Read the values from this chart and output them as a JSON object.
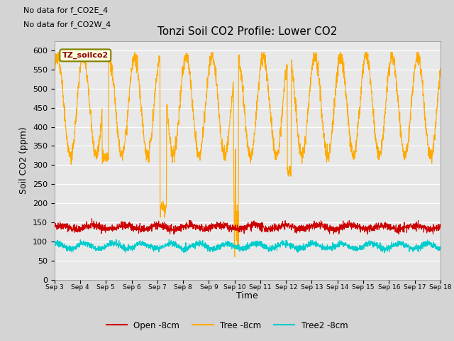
{
  "title": "Tonzi Soil CO2 Profile: Lower CO2",
  "ylabel": "Soil CO2 (ppm)",
  "xlabel": "Time",
  "no_data_text_1": "No data for f_CO2E_4",
  "no_data_text_2": "No data for f_CO2W_4",
  "legend_label": "TZ_soilco2",
  "ylim": [
    0,
    625
  ],
  "yticks": [
    0,
    50,
    100,
    150,
    200,
    250,
    300,
    350,
    400,
    450,
    500,
    550,
    600
  ],
  "xtick_labels": [
    "Sep 3",
    "Sep 4",
    "Sep 5",
    "Sep 6",
    "Sep 7",
    "Sep 8",
    "Sep 9",
    "Sep 10",
    "Sep 11",
    "Sep 12",
    "Sep 13",
    "Sep 14",
    "Sep 15",
    "Sep 16",
    "Sep 17",
    "Sep 18"
  ],
  "line_colors": {
    "open": "#cc0000",
    "tree": "#ffaa00",
    "tree2": "#00cccc"
  },
  "legend_entries": [
    "Open -8cm",
    "Tree -8cm",
    "Tree2 -8cm"
  ],
  "fig_bg_color": "#d4d4d4",
  "plot_bg_color": "#e8e8e8",
  "grid_color": "#ffffff"
}
